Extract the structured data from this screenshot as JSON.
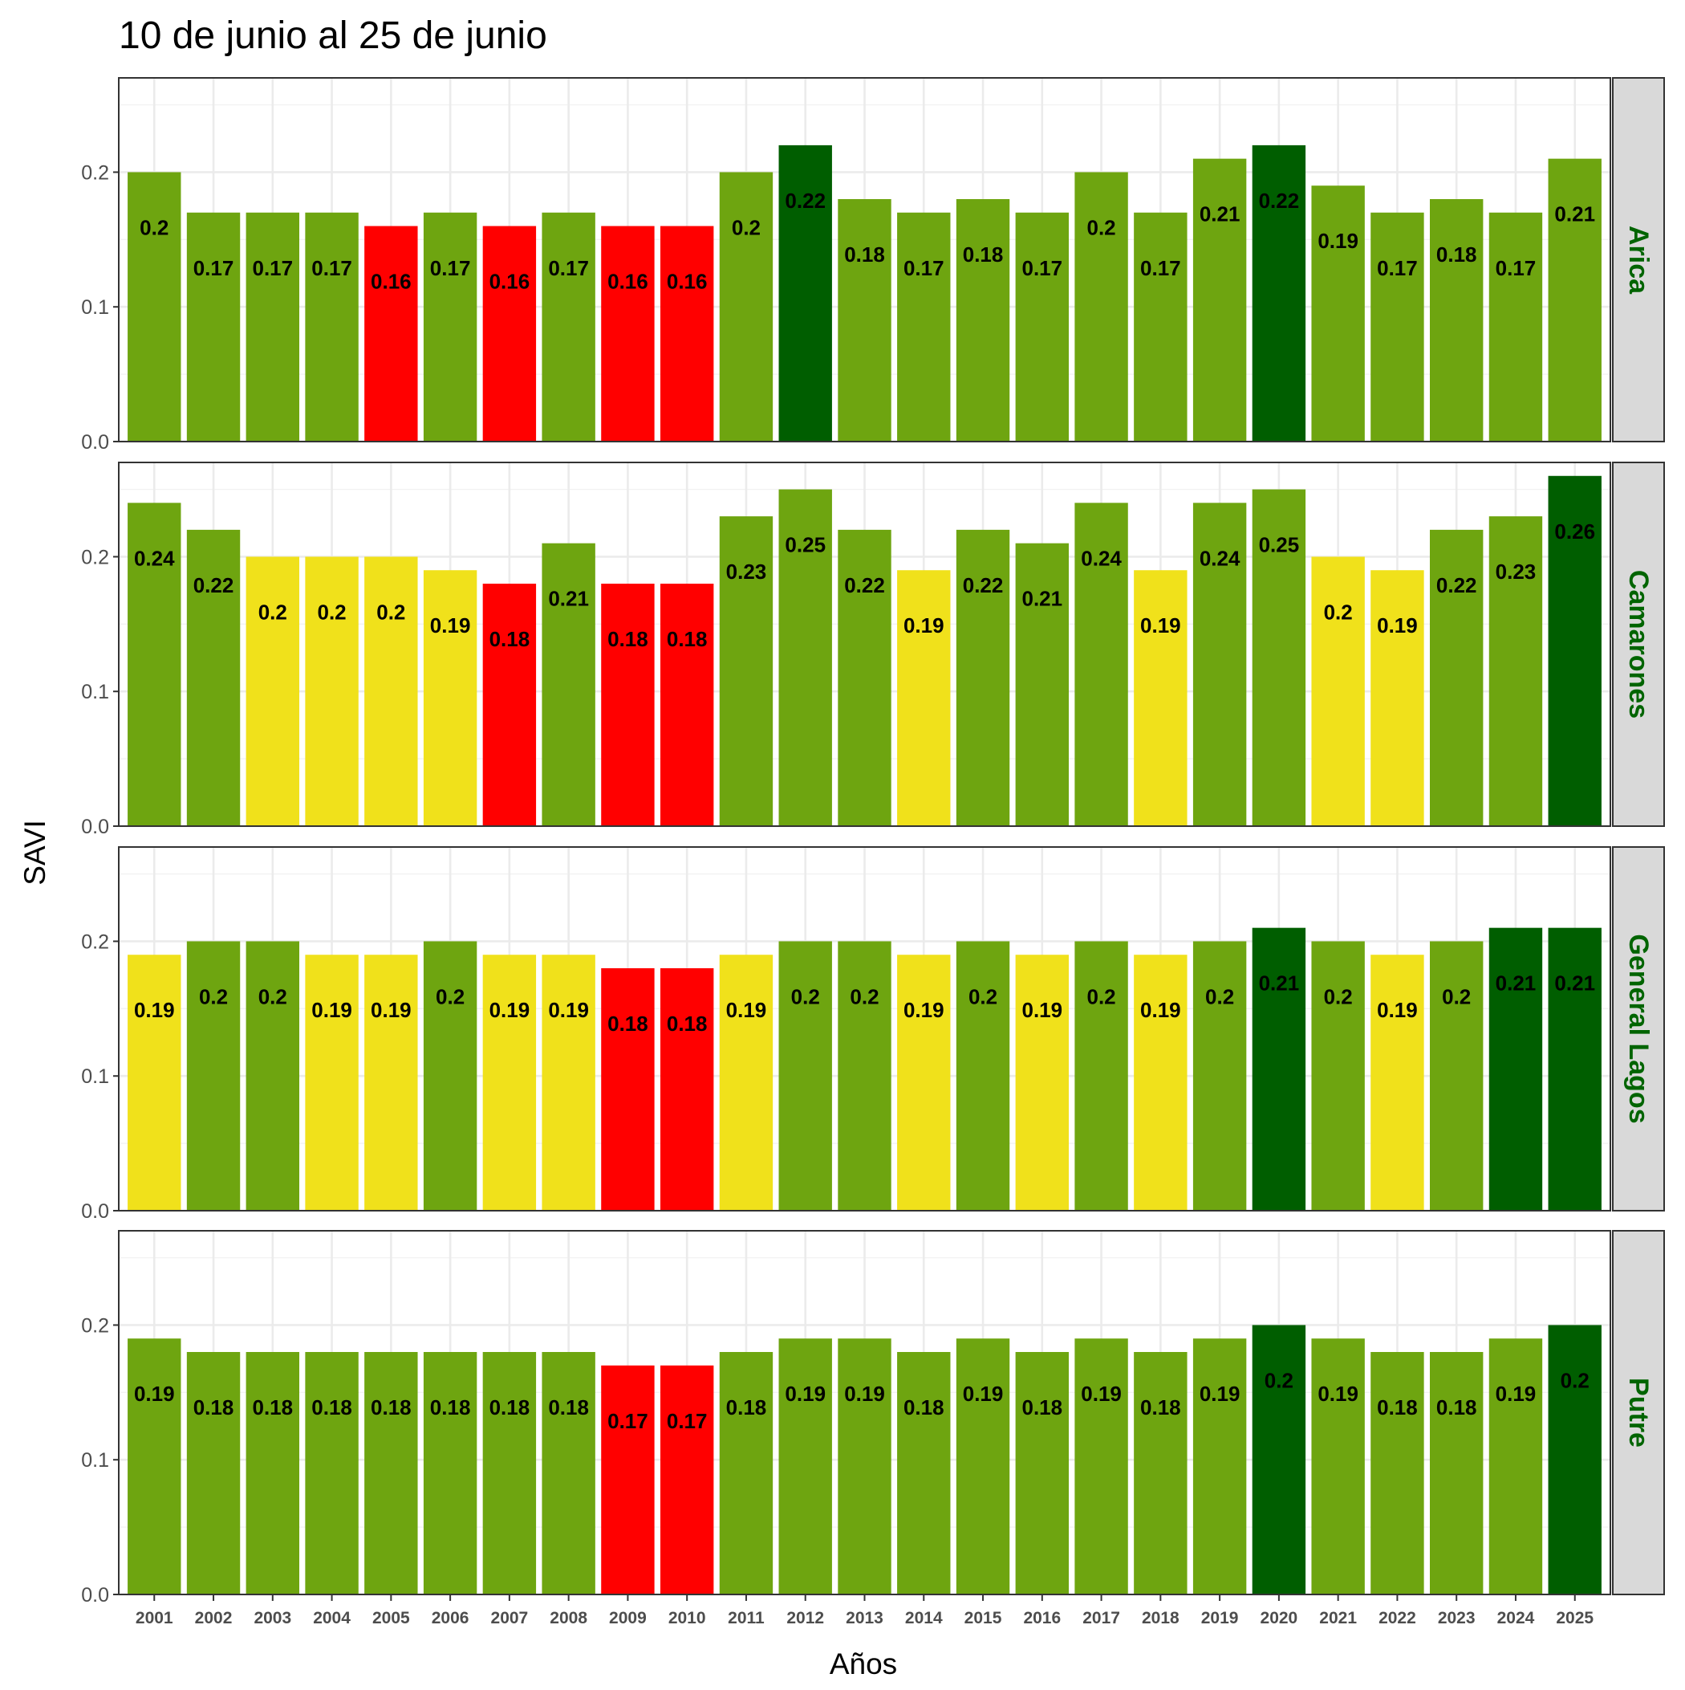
{
  "chart_data": {
    "type": "bar",
    "title": "10 de junio al 25 de junio",
    "xlabel": "Años",
    "ylabel": "SAVI",
    "ylim": [
      0,
      0.27
    ],
    "yticks": [
      "0.0",
      "0.1",
      "0.2"
    ],
    "ytick_values": [
      0,
      0.1,
      0.2
    ],
    "grid": true,
    "facet_layout": "rows, strip labels on right",
    "categories": [
      "2001",
      "2002",
      "2003",
      "2004",
      "2005",
      "2006",
      "2007",
      "2008",
      "2009",
      "2010",
      "2011",
      "2012",
      "2013",
      "2014",
      "2015",
      "2016",
      "2017",
      "2018",
      "2019",
      "2020",
      "2021",
      "2022",
      "2023",
      "2024",
      "2025"
    ],
    "colors": {
      "red": "#ff0000",
      "yellow": "#f0e11b",
      "light_green": "#6ea510",
      "dark_green": "#005e00",
      "strip_text": "#006400",
      "strip_bg": "#d9d9d9"
    },
    "series": [
      {
        "name": "Arica",
        "values": [
          0.2,
          0.17,
          0.17,
          0.17,
          0.16,
          0.17,
          0.16,
          0.17,
          0.16,
          0.16,
          0.2,
          0.22,
          0.18,
          0.17,
          0.18,
          0.17,
          0.2,
          0.17,
          0.21,
          0.22,
          0.19,
          0.17,
          0.18,
          0.17,
          0.21
        ],
        "labels": [
          "0.2",
          "0.17",
          "0.17",
          "0.17",
          "0.16",
          "0.17",
          "0.16",
          "0.17",
          "0.16",
          "0.16",
          "0.2",
          "0.22",
          "0.18",
          "0.17",
          "0.18",
          "0.17",
          "0.2",
          "0.17",
          "0.21",
          "0.22",
          "0.19",
          "0.17",
          "0.18",
          "0.17",
          "0.21"
        ],
        "bar_colors": [
          "light_green",
          "light_green",
          "light_green",
          "light_green",
          "red",
          "light_green",
          "red",
          "light_green",
          "red",
          "red",
          "light_green",
          "dark_green",
          "light_green",
          "light_green",
          "light_green",
          "light_green",
          "light_green",
          "light_green",
          "light_green",
          "dark_green",
          "light_green",
          "light_green",
          "light_green",
          "light_green",
          "light_green"
        ]
      },
      {
        "name": "Camarones",
        "values": [
          0.24,
          0.22,
          0.2,
          0.2,
          0.2,
          0.19,
          0.18,
          0.21,
          0.18,
          0.18,
          0.23,
          0.25,
          0.22,
          0.19,
          0.22,
          0.21,
          0.24,
          0.19,
          0.24,
          0.25,
          0.2,
          0.19,
          0.22,
          0.23,
          0.26
        ],
        "labels": [
          "0.24",
          "0.22",
          "0.2",
          "0.2",
          "0.2",
          "0.19",
          "0.18",
          "0.21",
          "0.18",
          "0.18",
          "0.23",
          "0.25",
          "0.22",
          "0.19",
          "0.22",
          "0.21",
          "0.24",
          "0.19",
          "0.24",
          "0.25",
          "0.2",
          "0.19",
          "0.22",
          "0.23",
          "0.26"
        ],
        "bar_colors": [
          "light_green",
          "light_green",
          "yellow",
          "yellow",
          "yellow",
          "yellow",
          "red",
          "light_green",
          "red",
          "red",
          "light_green",
          "light_green",
          "light_green",
          "yellow",
          "light_green",
          "light_green",
          "light_green",
          "yellow",
          "light_green",
          "light_green",
          "yellow",
          "yellow",
          "light_green",
          "light_green",
          "dark_green"
        ]
      },
      {
        "name": "General Lagos",
        "values": [
          0.19,
          0.2,
          0.2,
          0.19,
          0.19,
          0.2,
          0.19,
          0.19,
          0.18,
          0.18,
          0.19,
          0.2,
          0.2,
          0.19,
          0.2,
          0.19,
          0.2,
          0.19,
          0.2,
          0.21,
          0.2,
          0.19,
          0.2,
          0.21,
          0.21
        ],
        "labels": [
          "0.19",
          "0.2",
          "0.2",
          "0.19",
          "0.19",
          "0.2",
          "0.19",
          "0.19",
          "0.18",
          "0.18",
          "0.19",
          "0.2",
          "0.2",
          "0.19",
          "0.2",
          "0.19",
          "0.2",
          "0.19",
          "0.2",
          "0.21",
          "0.2",
          "0.19",
          "0.2",
          "0.21",
          "0.21"
        ],
        "bar_colors": [
          "yellow",
          "light_green",
          "light_green",
          "yellow",
          "yellow",
          "light_green",
          "yellow",
          "yellow",
          "red",
          "red",
          "yellow",
          "light_green",
          "light_green",
          "yellow",
          "light_green",
          "yellow",
          "light_green",
          "yellow",
          "light_green",
          "dark_green",
          "light_green",
          "yellow",
          "light_green",
          "dark_green",
          "dark_green"
        ]
      },
      {
        "name": "Putre",
        "values": [
          0.19,
          0.18,
          0.18,
          0.18,
          0.18,
          0.18,
          0.18,
          0.18,
          0.17,
          0.17,
          0.18,
          0.19,
          0.19,
          0.18,
          0.19,
          0.18,
          0.19,
          0.18,
          0.19,
          0.2,
          0.19,
          0.18,
          0.18,
          0.19,
          0.2
        ],
        "labels": [
          "0.19",
          "0.18",
          "0.18",
          "0.18",
          "0.18",
          "0.18",
          "0.18",
          "0.18",
          "0.17",
          "0.17",
          "0.18",
          "0.19",
          "0.19",
          "0.18",
          "0.19",
          "0.18",
          "0.19",
          "0.18",
          "0.19",
          "0.2",
          "0.19",
          "0.18",
          "0.18",
          "0.19",
          "0.2"
        ],
        "bar_colors": [
          "light_green",
          "light_green",
          "light_green",
          "light_green",
          "light_green",
          "light_green",
          "light_green",
          "light_green",
          "red",
          "red",
          "light_green",
          "light_green",
          "light_green",
          "light_green",
          "light_green",
          "light_green",
          "light_green",
          "light_green",
          "light_green",
          "dark_green",
          "light_green",
          "light_green",
          "light_green",
          "light_green",
          "dark_green"
        ]
      }
    ]
  }
}
